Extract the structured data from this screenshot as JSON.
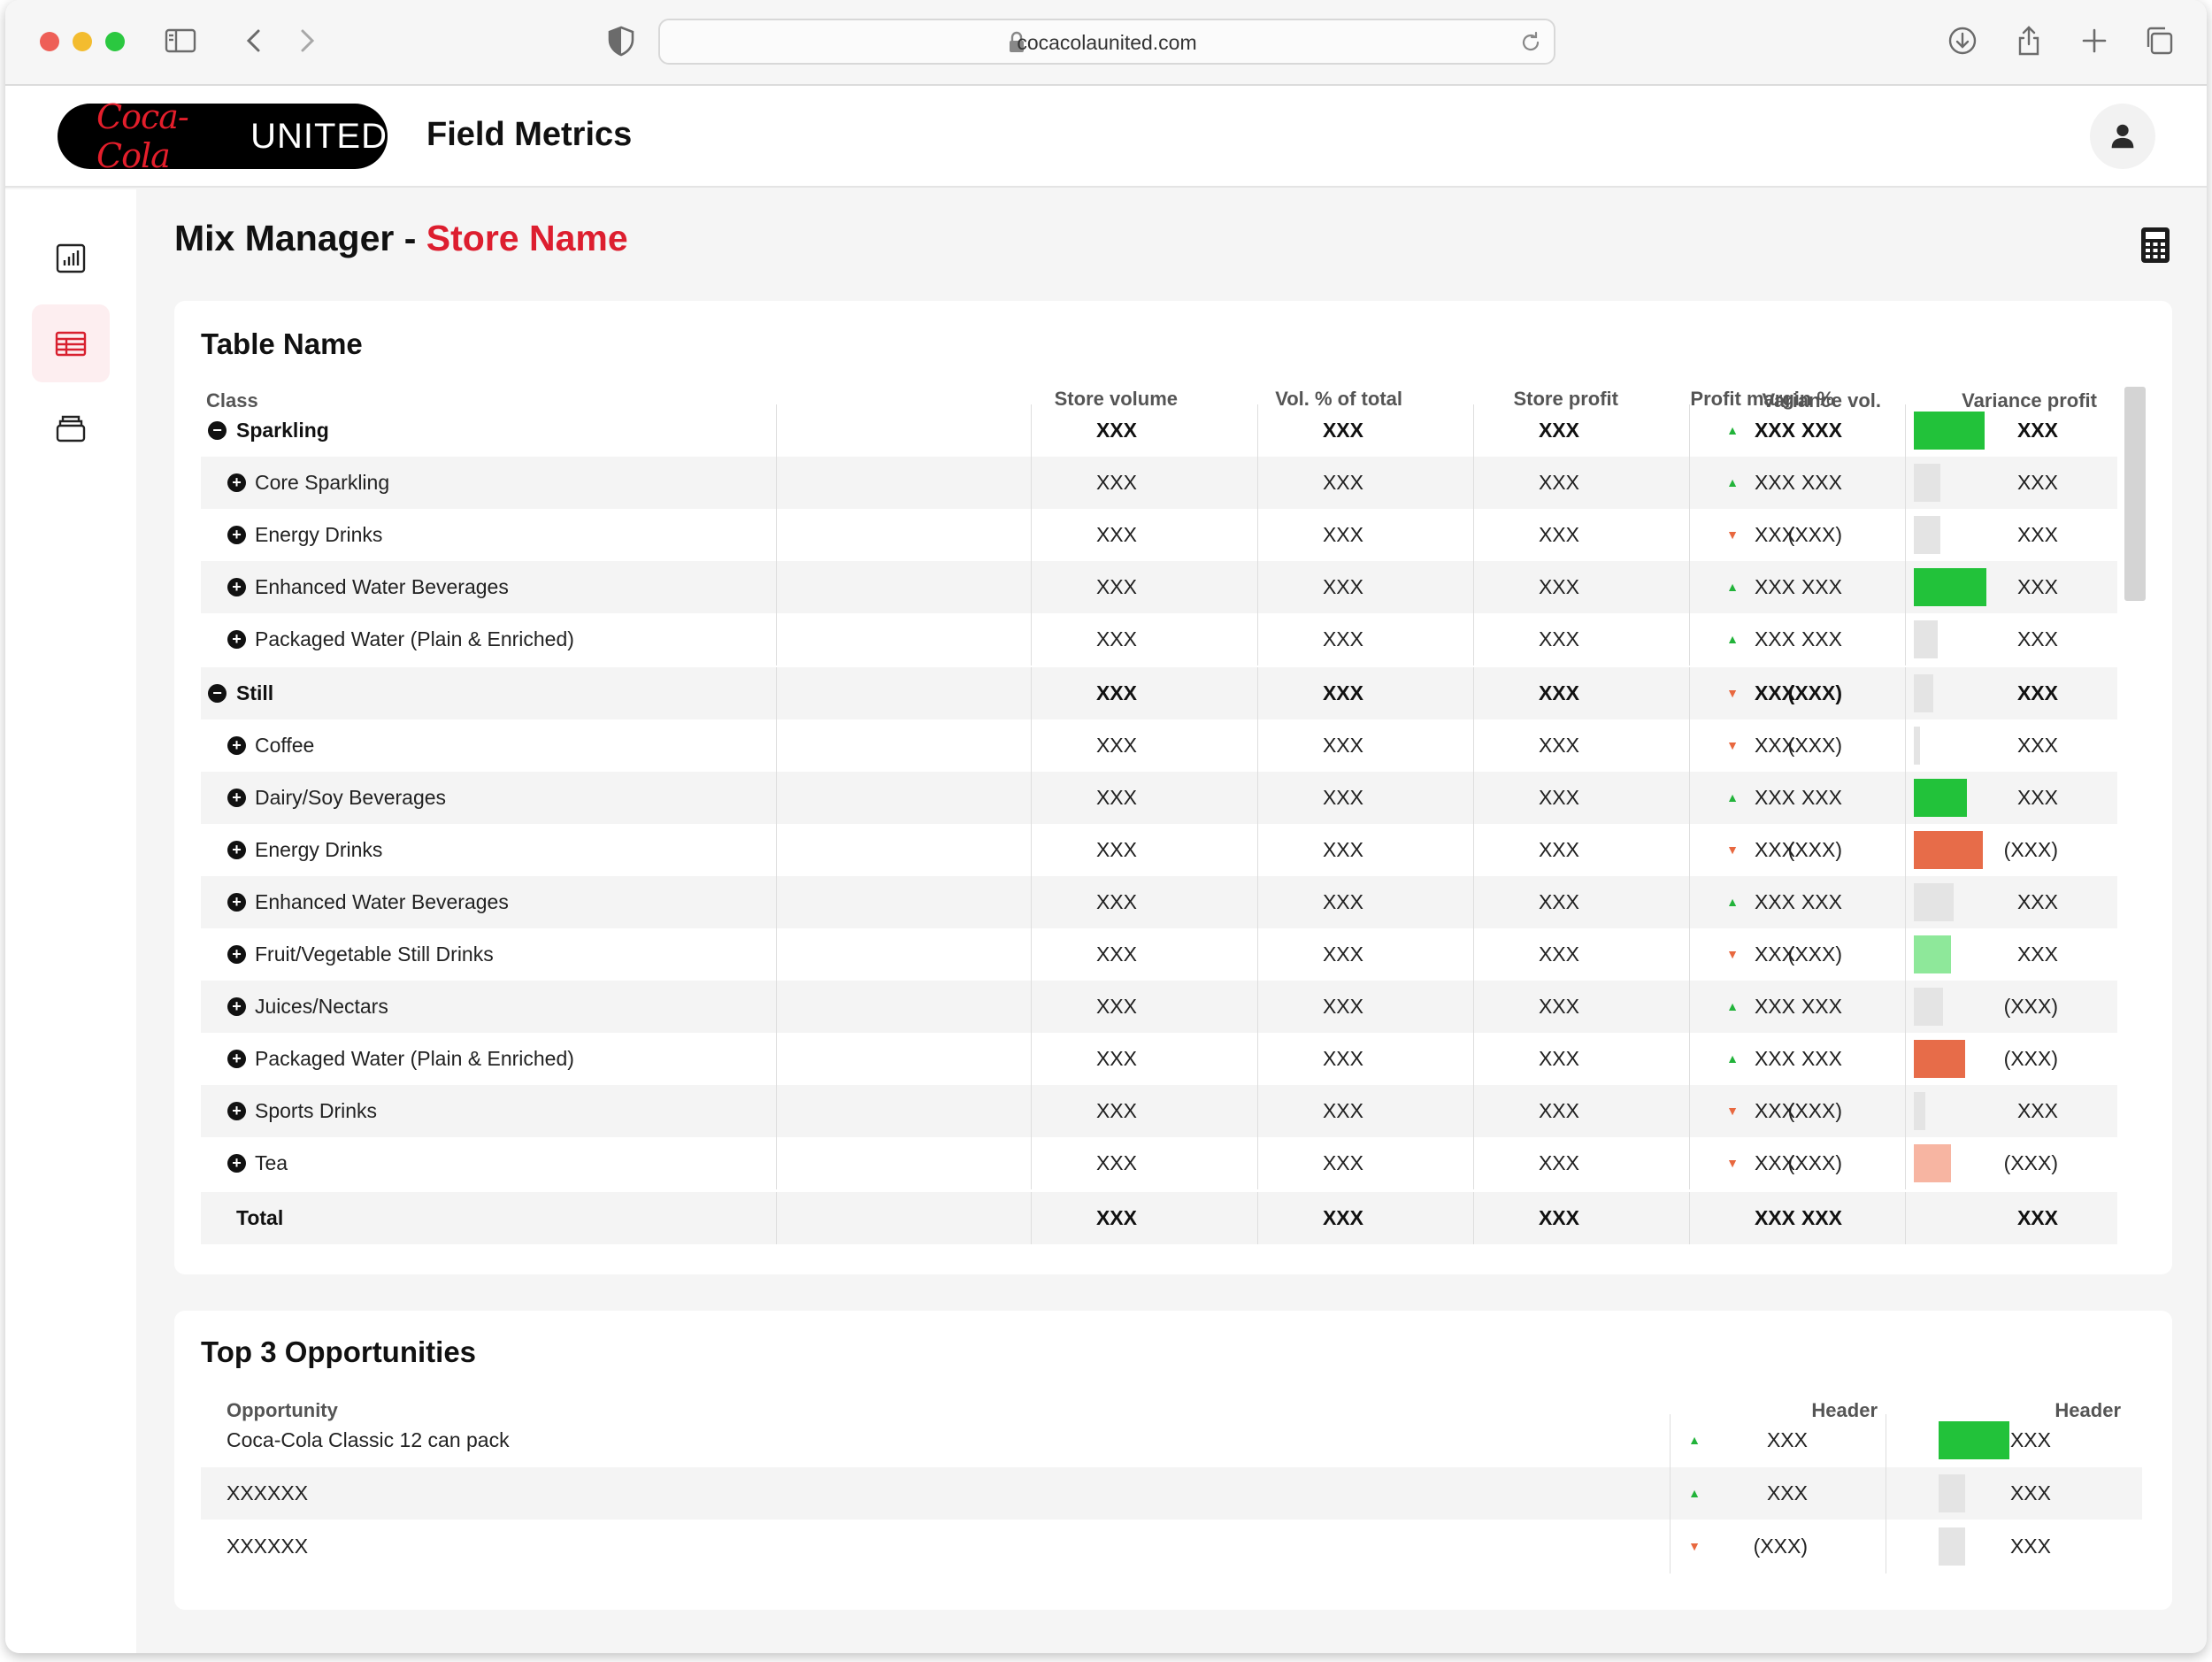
{
  "browser": {
    "url": "cocacolaunited.com"
  },
  "header": {
    "logo_script": "Coca-Cola",
    "logo_united": "UNITED",
    "app_title": "Field Metrics"
  },
  "page": {
    "title_prefix": "Mix Manager - ",
    "title_store": "Store Name"
  },
  "colors": {
    "bar_green": "#22c23a",
    "bar_light_green": "#8ee89a",
    "bar_orange": "#e76c49",
    "bar_light_orange": "#f7b5a2",
    "bar_grey": "#e4e4e4",
    "accent": "#dd1e2f"
  },
  "table": {
    "title": "Table Name",
    "columns": {
      "class": "Class",
      "store_volume": "Store volume",
      "vol_pct": "Vol. % of total",
      "store_profit": "Store profit",
      "profit_margin": "Profit margin %",
      "variance_vol": "Variance vol.",
      "variance_profit": "Variance profit"
    },
    "rows": [
      {
        "type": "group",
        "label": "Sparkling",
        "store_volume": "XXX",
        "vol_pct": "XXX",
        "store_profit": "XXX",
        "profit_margin": "XXX",
        "trend": "up",
        "variance_vol": "XXX",
        "bar_color": "green",
        "bar_level": 0.8,
        "variance_profit": "XXX"
      },
      {
        "type": "item",
        "label": "Core Sparkling",
        "store_volume": "XXX",
        "vol_pct": "XXX",
        "store_profit": "XXX",
        "profit_margin": "XXX",
        "trend": "up",
        "variance_vol": "XXX",
        "bar_color": "grey",
        "bar_level": 0.3,
        "variance_profit": "XXX"
      },
      {
        "type": "item",
        "label": "Energy Drinks",
        "store_volume": "XXX",
        "vol_pct": "XXX",
        "store_profit": "XXX",
        "profit_margin": "XXX",
        "trend": "down",
        "variance_vol": "(XXX)",
        "bar_color": "grey",
        "bar_level": 0.3,
        "variance_profit": "XXX"
      },
      {
        "type": "item",
        "label": "Enhanced Water Beverages",
        "store_volume": "XXX",
        "vol_pct": "XXX",
        "store_profit": "XXX",
        "profit_margin": "XXX",
        "trend": "up",
        "variance_vol": "XXX",
        "bar_color": "green",
        "bar_level": 0.82,
        "variance_profit": "XXX"
      },
      {
        "type": "item",
        "label": "Packaged Water (Plain & Enriched)",
        "store_volume": "XXX",
        "vol_pct": "XXX",
        "store_profit": "XXX",
        "profit_margin": "XXX",
        "trend": "up",
        "variance_vol": "XXX",
        "bar_color": "grey",
        "bar_level": 0.27,
        "variance_profit": "XXX"
      },
      {
        "type": "group",
        "label": "Still",
        "store_volume": "XXX",
        "vol_pct": "XXX",
        "store_profit": "XXX",
        "profit_margin": "XXX",
        "trend": "down",
        "variance_vol": "(XXX)",
        "bar_color": "grey",
        "bar_level": 0.22,
        "variance_profit": "XXX"
      },
      {
        "type": "item",
        "label": "Coffee",
        "store_volume": "XXX",
        "vol_pct": "XXX",
        "store_profit": "XXX",
        "profit_margin": "XXX",
        "trend": "down",
        "variance_vol": "(XXX)",
        "bar_color": "grey",
        "bar_level": 0.07,
        "variance_profit": "XXX"
      },
      {
        "type": "item",
        "label": "Dairy/Soy Beverages",
        "store_volume": "XXX",
        "vol_pct": "XXX",
        "store_profit": "XXX",
        "profit_margin": "XXX",
        "trend": "up",
        "variance_vol": "XXX",
        "bar_color": "green",
        "bar_level": 0.6,
        "variance_profit": "XXX"
      },
      {
        "type": "item",
        "label": "Energy Drinks",
        "store_volume": "XXX",
        "vol_pct": "XXX",
        "store_profit": "XXX",
        "profit_margin": "XXX",
        "trend": "down",
        "variance_vol": "(XXX)",
        "bar_color": "orange",
        "bar_level": 0.78,
        "variance_profit": "(XXX)"
      },
      {
        "type": "item",
        "label": "Enhanced Water Beverages",
        "store_volume": "XXX",
        "vol_pct": "XXX",
        "store_profit": "XXX",
        "profit_margin": "XXX",
        "trend": "up",
        "variance_vol": "XXX",
        "bar_color": "grey",
        "bar_level": 0.45,
        "variance_profit": "XXX"
      },
      {
        "type": "item",
        "label": "Fruit/Vegetable Still Drinks",
        "store_volume": "XXX",
        "vol_pct": "XXX",
        "store_profit": "XXX",
        "profit_margin": "XXX",
        "trend": "down",
        "variance_vol": "(XXX)",
        "bar_color": "light_green",
        "bar_level": 0.42,
        "variance_profit": "XXX"
      },
      {
        "type": "item",
        "label": "Juices/Nectars",
        "store_volume": "XXX",
        "vol_pct": "XXX",
        "store_profit": "XXX",
        "profit_margin": "XXX",
        "trend": "up",
        "variance_vol": "XXX",
        "bar_color": "grey",
        "bar_level": 0.33,
        "variance_profit": "(XXX)"
      },
      {
        "type": "item",
        "label": "Packaged Water (Plain & Enriched)",
        "store_volume": "XXX",
        "vol_pct": "XXX",
        "store_profit": "XXX",
        "profit_margin": "XXX",
        "trend": "up",
        "variance_vol": "XXX",
        "bar_color": "orange",
        "bar_level": 0.58,
        "variance_profit": "(XXX)"
      },
      {
        "type": "item",
        "label": "Sports Drinks",
        "store_volume": "XXX",
        "vol_pct": "XXX",
        "store_profit": "XXX",
        "profit_margin": "XXX",
        "trend": "down",
        "variance_vol": "(XXX)",
        "bar_color": "grey",
        "bar_level": 0.13,
        "variance_profit": "XXX"
      },
      {
        "type": "item",
        "label": "Tea",
        "store_volume": "XXX",
        "vol_pct": "XXX",
        "store_profit": "XXX",
        "profit_margin": "XXX",
        "trend": "down",
        "variance_vol": "(XXX)",
        "bar_color": "light_orange",
        "bar_level": 0.42,
        "variance_profit": "(XXX)"
      },
      {
        "type": "total",
        "label": "Total",
        "store_volume": "XXX",
        "vol_pct": "XXX",
        "store_profit": "XXX",
        "profit_margin": "XXX",
        "trend": "",
        "variance_vol": "XXX",
        "bar_color": "",
        "bar_level": 0,
        "variance_profit": "XXX"
      }
    ]
  },
  "opportunities": {
    "title": "Top 3 Opportunities",
    "columns": {
      "opportunity": "Opportunity",
      "header1": "Header",
      "header2": "Header"
    },
    "rows": [
      {
        "label": "Coca-Cola Classic 12 can pack",
        "trend": "up",
        "value1": "XXX",
        "bar_color": "green",
        "bar_level": 0.8,
        "value2": "XXX"
      },
      {
        "label": "XXXXXX",
        "trend": "up",
        "value1": "XXX",
        "bar_color": "grey",
        "bar_level": 0.3,
        "value2": "XXX"
      },
      {
        "label": "XXXXXX",
        "trend": "down",
        "value1": "(XXX)",
        "bar_color": "grey",
        "bar_level": 0.3,
        "value2": "XXX"
      }
    ]
  }
}
